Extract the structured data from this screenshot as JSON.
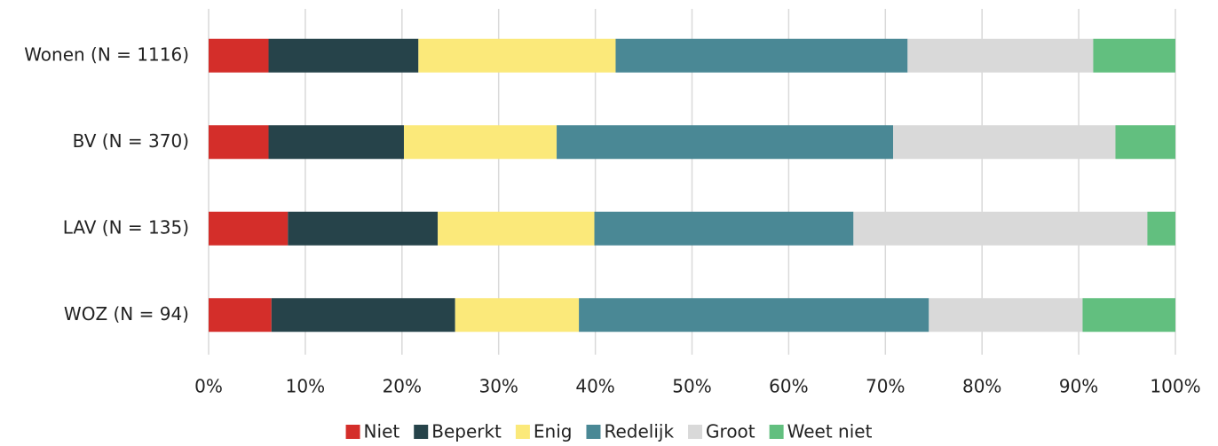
{
  "chart_data": {
    "type": "stacked-barh",
    "categories": [
      "Wonen (N = 1116)",
      "BV (N = 370)",
      "LAV (N = 135)",
      "WOZ (N = 94)"
    ],
    "series": [
      {
        "name": "Niet",
        "color": "#d42e2a",
        "values": [
          6.2,
          6.2,
          8.2,
          6.5
        ]
      },
      {
        "name": "Beperkt",
        "color": "#26434a",
        "values": [
          15.5,
          14.0,
          15.5,
          19.0
        ]
      },
      {
        "name": "Enig",
        "color": "#fbe97a",
        "values": [
          20.4,
          15.8,
          16.2,
          12.8
        ]
      },
      {
        "name": "Redelijk",
        "color": "#4a8895",
        "values": [
          30.2,
          34.8,
          26.8,
          36.2
        ]
      },
      {
        "name": "Groot",
        "color": "#d9d9d9",
        "values": [
          19.2,
          23.0,
          30.4,
          15.9
        ]
      },
      {
        "name": "Weet niet",
        "color": "#62bf7f",
        "values": [
          8.5,
          6.2,
          2.9,
          9.6
        ]
      }
    ],
    "xlim": [
      0,
      100
    ],
    "xticks": [
      {
        "value": 0,
        "label": "0%"
      },
      {
        "value": 10,
        "label": "10%"
      },
      {
        "value": 20,
        "label": "20%"
      },
      {
        "value": 30,
        "label": "30%"
      },
      {
        "value": 40,
        "label": "40%"
      },
      {
        "value": 50,
        "label": "50%"
      },
      {
        "value": 60,
        "label": "60%"
      },
      {
        "value": 70,
        "label": "70%"
      },
      {
        "value": 80,
        "label": "80%"
      },
      {
        "value": 90,
        "label": "90%"
      },
      {
        "value": 100,
        "label": "100%"
      }
    ],
    "grid": true,
    "legend": "bottom"
  }
}
